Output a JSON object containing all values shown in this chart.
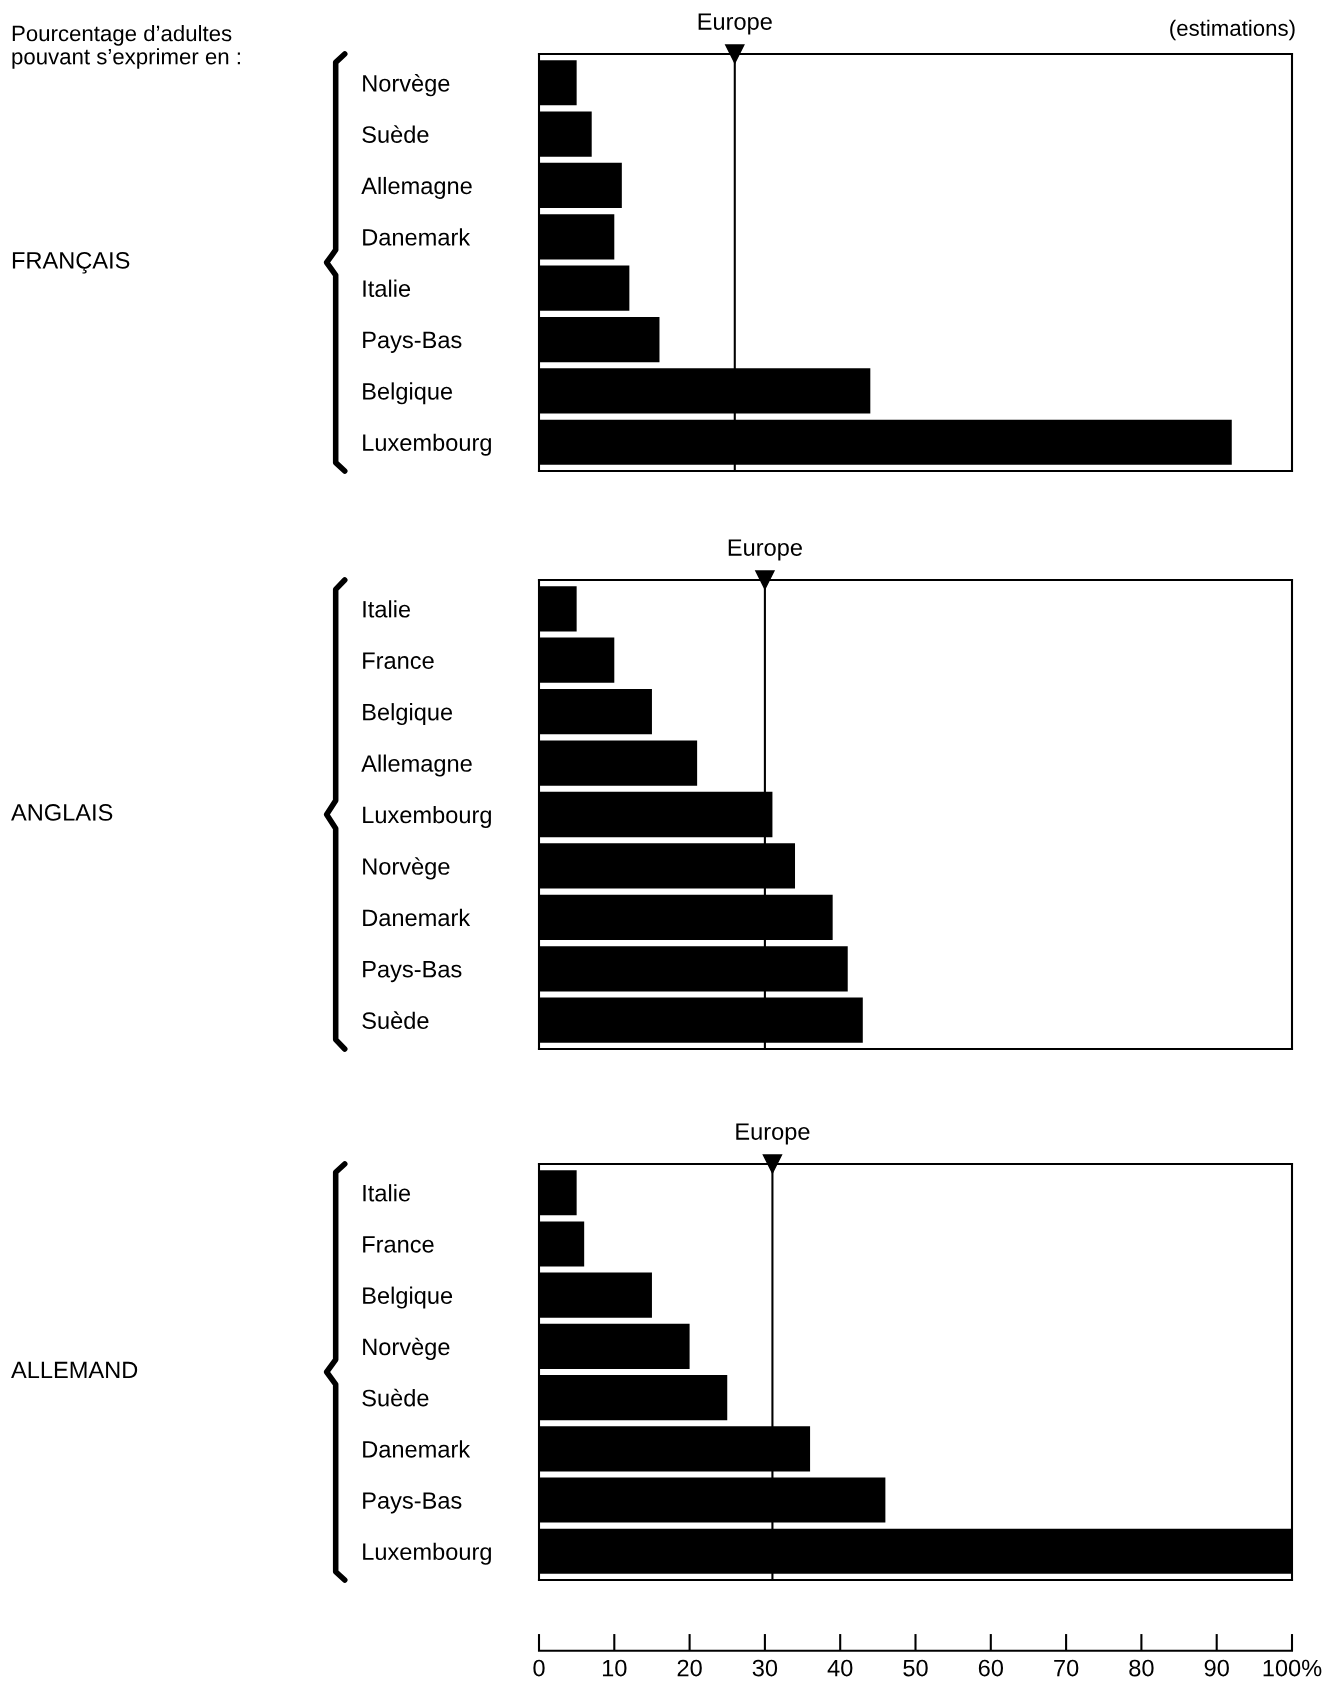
{
  "chart_data": [
    {
      "type": "bar",
      "orientation": "horizontal",
      "title": "Pourcentage d’adultes\npouvant s’exprimer en :",
      "annotations": [
        "(estimations)"
      ],
      "ylabel": "FRANÇAIS",
      "categories": [
        "Norvège",
        "Suède",
        "Allemagne",
        "Danemark",
        "Italie",
        "Pays-Bas",
        "Belgique",
        "Luxembourg"
      ],
      "values": [
        5,
        7,
        11,
        10,
        12,
        16,
        44,
        92
      ],
      "color": "#000000",
      "xlim": [
        0,
        100
      ],
      "tick_labels": "y",
      "ref_lines": [
        {
          "axis": "x",
          "value": 26,
          "label": "Europe",
          "color": "#000000"
        }
      ]
    },
    {
      "type": "bar",
      "orientation": "horizontal",
      "ylabel": "ANGLAIS",
      "categories": [
        "Italie",
        "France",
        "Belgique",
        "Allemagne",
        "Luxembourg",
        "Norvège",
        "Danemark",
        "Pays-Bas",
        "Suède"
      ],
      "values": [
        5,
        10,
        15,
        21,
        31,
        34,
        39,
        41,
        43
      ],
      "color": "#000000",
      "xlim": [
        0,
        100
      ],
      "tick_labels": "y",
      "ref_lines": [
        {
          "axis": "x",
          "value": 30,
          "label": "Europe",
          "color": "#000000"
        }
      ]
    },
    {
      "type": "bar",
      "orientation": "horizontal",
      "ylabel": "ALLEMAND",
      "categories": [
        "Italie",
        "France",
        "Belgique",
        "Norvège",
        "Suède",
        "Danemark",
        "Pays-Bas",
        "Luxembourg"
      ],
      "values": [
        5,
        6,
        15,
        20,
        25,
        36,
        46,
        100
      ],
      "color": "#000000",
      "xlim": [
        0,
        100
      ],
      "xticks": [
        0,
        10,
        20,
        30,
        40,
        50,
        60,
        70,
        80,
        90,
        {
          "value": 100,
          "label": "100%"
        }
      ],
      "ref_lines": [
        {
          "axis": "x",
          "value": 31,
          "label": "Europe",
          "color": "#000000"
        }
      ]
    }
  ]
}
